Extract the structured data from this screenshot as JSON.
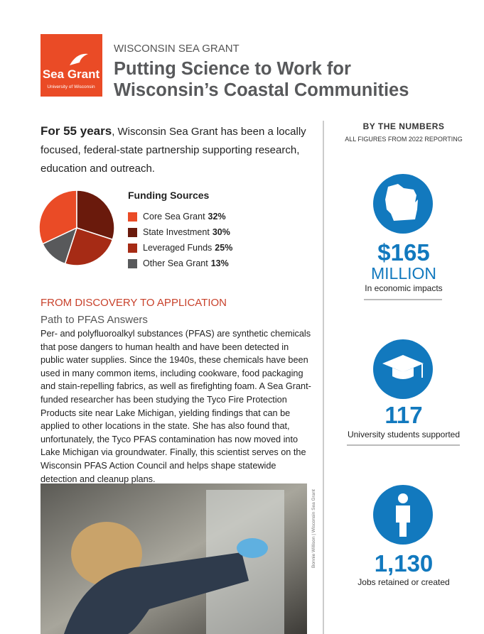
{
  "header": {
    "logo": {
      "name": "Sea Grant",
      "subtitle": "University of Wisconsin"
    },
    "kicker": "WISCONSIN SEA GRANT",
    "title_lines": [
      "Putting Science to Work for",
      "Wisconsin’s Coastal Communities"
    ]
  },
  "intro": {
    "lead": "For 55 years",
    "text": ", Wisconsin Sea Grant has been a locally focused, federal-state partnership supporting research, education and outreach."
  },
  "chart_data": {
    "type": "pie",
    "title": "Funding Sources",
    "categories": [
      "Core Sea Grant",
      "State Investment",
      "Leveraged Funds",
      "Other Sea Grant"
    ],
    "values": [
      32,
      30,
      25,
      13
    ],
    "value_labels": [
      "32%",
      "30%",
      "25%",
      "13%"
    ],
    "colors": [
      "#ea4b26",
      "#6a1a0c",
      "#a62b15",
      "#58595b"
    ]
  },
  "section": {
    "heading": "FROM DISCOVERY TO APPLICATION",
    "subheading": "Path to PFAS Answers",
    "body": "Per- and polyfluoroalkyl substances (PFAS) are synthetic chemicals that pose dangers to human health and have been detected in public water supplies. Since the 1940s, these chemicals have been used in many common items, including cookware, food packaging and stain-repelling fabrics, as well as firefighting foam. A Sea Grant-funded researcher has been studying the Tyco Fire Protection Products site near Lake Michigan, yielding findings that can be applied to other locations in the state. She has also found that, unfortunately, the Tyco PFAS contamination has now moved into Lake Michigan via groundwater. Finally, this scientist serves on the Wisconsin PFAS Action Council and helps shape statewide detection and cleanup plans.",
    "photo_credit": "Bonnie Willison | Wisconsin Sea Grant"
  },
  "sidebar": {
    "title": "BY THE NUMBERS",
    "subtitle": "ALL FIGURES FROM 2022 REPORTING",
    "stats": [
      {
        "value": "$165",
        "unit": "MILLION",
        "label": "In economic impacts"
      },
      {
        "value": "117",
        "label": "University students supported"
      },
      {
        "value": "1,130",
        "label": "Jobs retained or created"
      }
    ]
  }
}
